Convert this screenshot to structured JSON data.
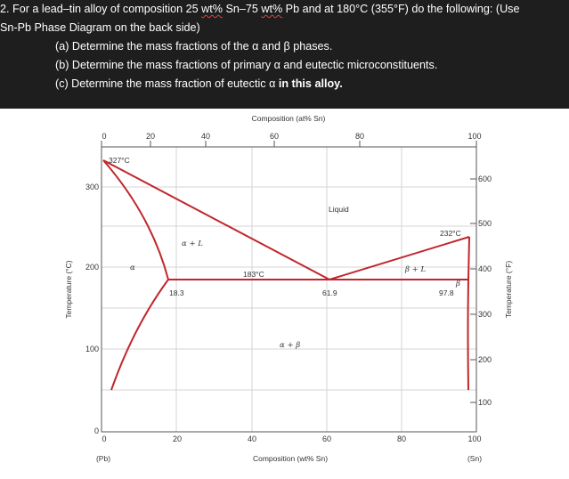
{
  "question": {
    "line1": [
      "2. For a lead",
      "–",
      "tin alloy of composition 25 ",
      "wt%",
      " Sn",
      "–",
      "75 ",
      "wt%",
      " Pb and at 180°C (355°F) do the following: (Use"
    ],
    "line2": "Sn-Pb Phase Diagram on the back side)",
    "part_a": "(a) Determine the mass fractions of the α and β phases.",
    "part_b": "(b) Determine the mass fractions of primary α and eutectic microconstituents.",
    "part_c_prefix": "(c) Determine the mass fraction of eutectic α ",
    "part_c_bold": "in this alloy."
  },
  "diagram": {
    "top_axis_title": "Composition (at% Sn)",
    "top_ticks": [
      "0",
      "20",
      "40",
      "60",
      "80",
      "100"
    ],
    "bottom_axis_title": "Composition (wt% Sn)",
    "bottom_ticks": [
      "0",
      "20",
      "40",
      "60",
      "80",
      "100"
    ],
    "left_axis_title": "Temperature (°C)",
    "left_ticks": [
      "0",
      "100",
      "200",
      "300"
    ],
    "right_axis_title": "Temperature (°F)",
    "right_ticks": [
      "100",
      "200",
      "300",
      "400",
      "500",
      "600"
    ],
    "pb_label": "(Pb)",
    "sn_label": "(Sn)",
    "labels": {
      "pb_melt": "327°C",
      "sn_melt": "232°C",
      "eutectic_temp": "183°C",
      "liquid": "Liquid",
      "alpha_liquid": "α + L",
      "beta_liquid": "β + L",
      "alpha_beta": "α + β",
      "alpha": "α",
      "beta": "β",
      "c_alpha": "18.3",
      "c_eutectic": "61.9",
      "c_beta": "97.8"
    },
    "line_color": "#c0262c"
  }
}
